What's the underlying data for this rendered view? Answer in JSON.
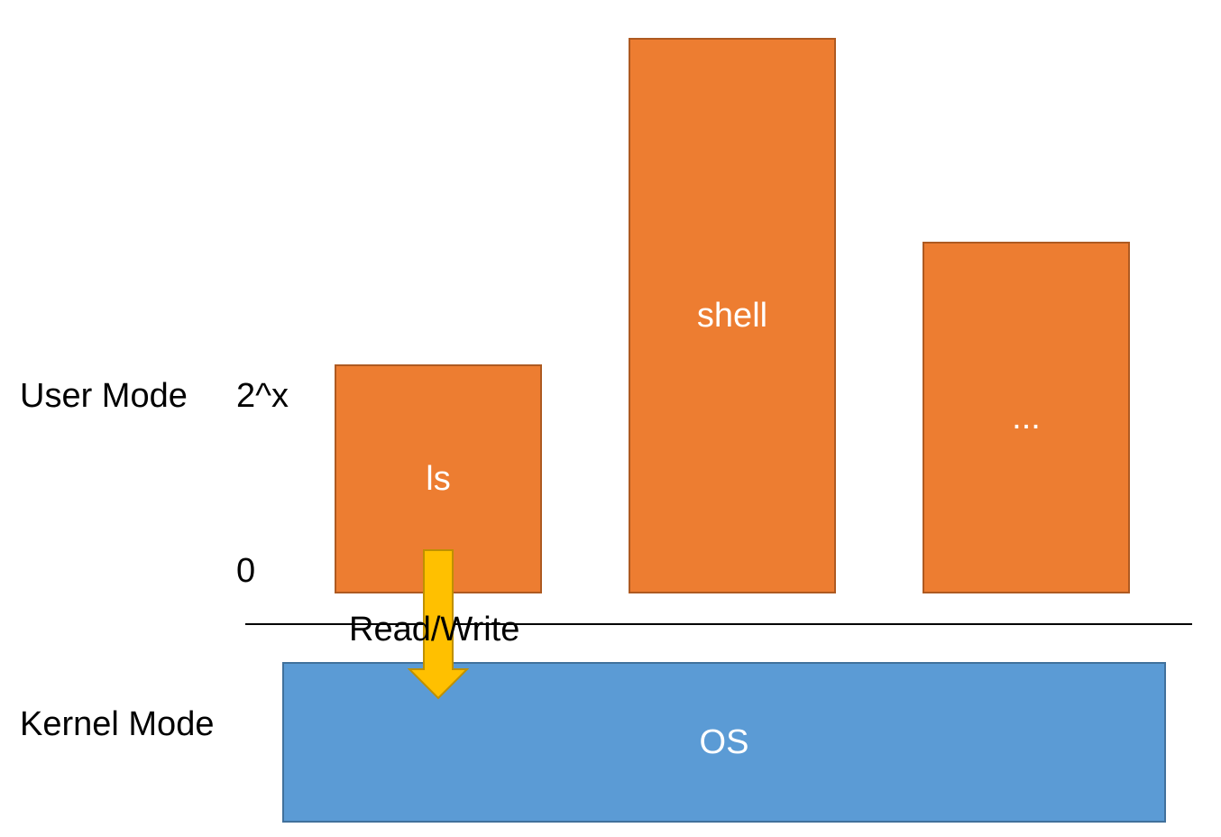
{
  "labels": {
    "user_mode": "User Mode",
    "kernel_mode": "Kernel Mode",
    "addr_top": "2^x",
    "addr_bottom": "0",
    "arrow_label": "Read/Write"
  },
  "processes": [
    {
      "name": "ls"
    },
    {
      "name": "shell"
    },
    {
      "name": "..."
    }
  ],
  "kernel": {
    "name": "OS"
  },
  "colors": {
    "process_fill": "#ED7D31",
    "process_border": "#AE5A21",
    "os_fill": "#5B9BD5",
    "os_border": "#41719C",
    "arrow_fill": "#FFC000",
    "arrow_border": "#BF9000"
  }
}
